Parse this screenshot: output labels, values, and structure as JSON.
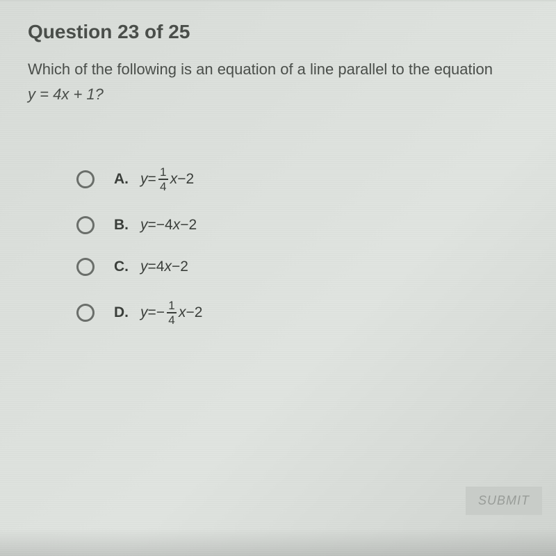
{
  "header": {
    "title": "Question 23 of 25"
  },
  "question": {
    "line1": "Which of the following is an equation of a line parallel to the equation",
    "eq_lhs": "y",
    "eq_eq": " = ",
    "eq_rhs_coef": "4",
    "eq_rhs_var": "x",
    "eq_rhs_op": " + ",
    "eq_rhs_const": "1",
    "eq_q": "?"
  },
  "options": {
    "a": {
      "label": "A.",
      "lhs": "y",
      "eq": " = ",
      "frac_num": "1",
      "frac_den": "4",
      "var": "x",
      "op": " − ",
      "const": "2"
    },
    "b": {
      "label": "B.",
      "lhs": "y",
      "eq": " = ",
      "neg": "−",
      "coef": "4",
      "var": "x",
      "op": " − ",
      "const": "2"
    },
    "c": {
      "label": "C.",
      "lhs": "y",
      "eq": " = ",
      "coef": "4",
      "var": "x",
      "op": " − ",
      "const": "2"
    },
    "d": {
      "label": "D.",
      "lhs": "y",
      "eq": " = ",
      "neg": "−",
      "frac_num": "1",
      "frac_den": "4",
      "var": "x",
      "op": " − ",
      "const": "2"
    }
  },
  "submit": {
    "label": "SUBMIT"
  },
  "styling": {
    "background_gradient": [
      "#d8dcd8",
      "#dce0dc",
      "#e0e4e0",
      "#d0d4d0"
    ],
    "header_color": "#4a4e4a",
    "text_color": "#4a4e4a",
    "option_text_color": "#3a3e3a",
    "radio_border_color": "#6a6e6a",
    "submit_bg": "#c8ccc8",
    "submit_fg": "#989c98",
    "header_fontsize": 28,
    "question_fontsize": 22,
    "option_fontsize": 21
  }
}
